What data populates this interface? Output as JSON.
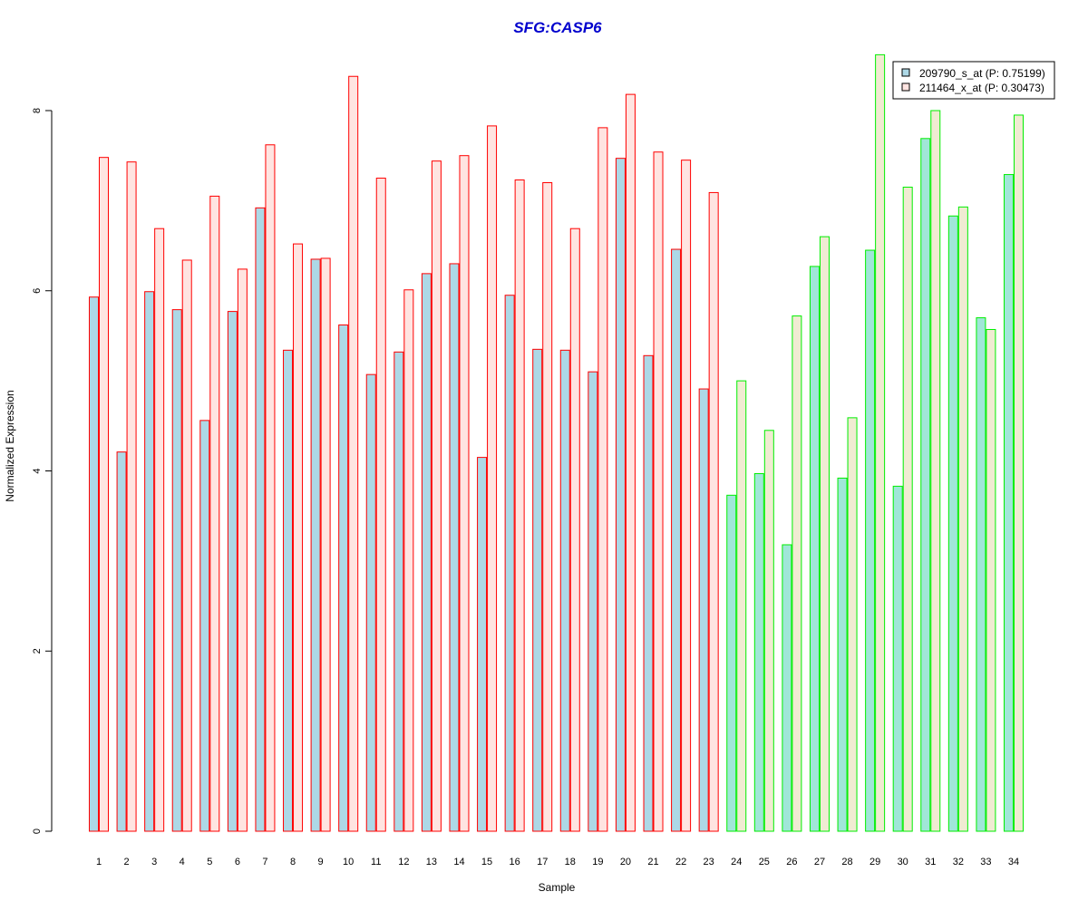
{
  "chart_data": {
    "type": "bar",
    "title": "SFG:CASP6",
    "xlabel": "Sample",
    "ylabel": "Normalized Expression",
    "ylim": [
      0,
      8.6
    ],
    "yticks": [
      0,
      2,
      4,
      6,
      8
    ],
    "grid": false,
    "legend_position": "top-right",
    "categories": [
      "1",
      "2",
      "3",
      "4",
      "5",
      "6",
      "7",
      "8",
      "9",
      "10",
      "11",
      "12",
      "13",
      "14",
      "15",
      "16",
      "17",
      "18",
      "19",
      "20",
      "21",
      "22",
      "23",
      "24",
      "25",
      "26",
      "27",
      "28",
      "29",
      "30",
      "31",
      "32",
      "33",
      "34"
    ],
    "groups": [
      {
        "samples": [
          1,
          23
        ],
        "border_color": "#ff0000"
      },
      {
        "samples": [
          24,
          34
        ],
        "border_color": "#00ee00"
      }
    ],
    "series": [
      {
        "name": "209790_s_at (P: 0.75199)",
        "fill_colors": [
          "#add8e6",
          "#a0e6d8"
        ],
        "values": [
          5.93,
          4.21,
          5.99,
          5.79,
          4.56,
          5.77,
          6.92,
          5.34,
          6.35,
          5.62,
          5.07,
          5.32,
          6.19,
          6.3,
          4.15,
          5.95,
          5.35,
          5.34,
          5.1,
          7.47,
          5.28,
          6.46,
          4.91,
          3.73,
          3.97,
          3.18,
          6.27,
          3.92,
          6.45,
          3.83,
          7.69,
          6.83,
          5.7,
          7.29
        ]
      },
      {
        "name": "211464_x_at (P: 0.30473)",
        "fill_colors": [
          "#ffe4e1",
          "#f0ebd2"
        ],
        "values": [
          7.48,
          7.43,
          6.69,
          6.34,
          7.05,
          6.24,
          7.62,
          6.52,
          6.36,
          8.38,
          7.25,
          6.01,
          7.44,
          7.5,
          7.83,
          7.23,
          7.2,
          6.69,
          7.81,
          8.18,
          7.54,
          7.45,
          7.09,
          5.0,
          4.45,
          5.72,
          6.6,
          4.59,
          8.62,
          7.15,
          8.0,
          6.93,
          5.57,
          7.95
        ]
      }
    ]
  }
}
